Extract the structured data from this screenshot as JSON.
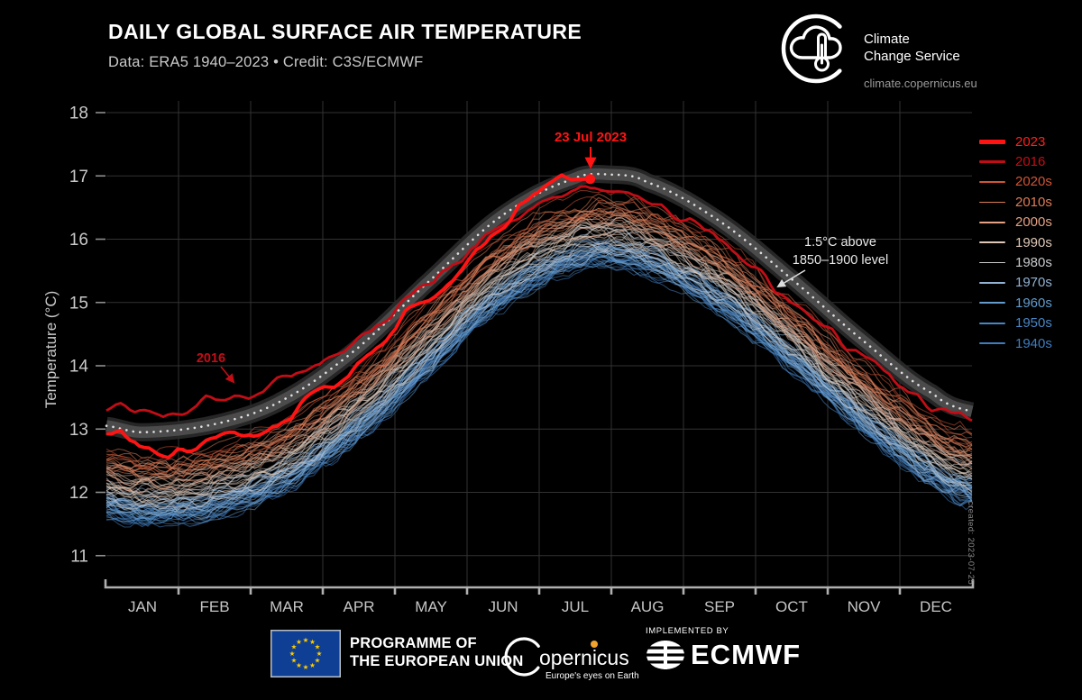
{
  "header": {
    "title": "DAILY GLOBAL SURFACE AIR TEMPERATURE",
    "subtitle": "Data: ERA5 1940–2023 • Credit: C3S/ECMWF"
  },
  "branding": {
    "name_line1": "Climate",
    "name_line2": "Change Service",
    "url": "climate.copernicus.eu"
  },
  "created_note": "created: 2023-07-25",
  "footer": {
    "eu_programme_line1": "PROGRAMME OF",
    "eu_programme_line2": "THE EUROPEAN UNION",
    "copernicus_name": "opernicus",
    "copernicus_tagline": "Europe's eyes on Earth",
    "implemented_by": "IMPLEMENTED BY",
    "ecmwf": "ECMWF"
  },
  "chart_data": {
    "type": "line",
    "title": "DAILY GLOBAL SURFACE AIR TEMPERATURE",
    "xlabel": "",
    "ylabel": "Temperature (°C)",
    "ylim": [
      10.5,
      18.2
    ],
    "y_ticks": [
      11,
      12,
      13,
      14,
      15,
      16,
      17,
      18
    ],
    "months": [
      "JAN",
      "FEB",
      "MAR",
      "APR",
      "MAY",
      "JUN",
      "JUL",
      "AUG",
      "SEP",
      "OCT",
      "NOV",
      "DEC"
    ],
    "grid": true,
    "legend_position": "right",
    "colors": {
      "background": "#000000",
      "grid": "#323232",
      "axis": "#b0b0b0",
      "tick_label": "#c9c9c9",
      "band": "#4d4d4d",
      "band_halo": "#2a2a2a",
      "dotted": "#e0e0e0",
      "annotation_light": "#e8e8e8"
    },
    "threshold": {
      "label_line1": "1.5°C above",
      "label_line2": "1850–1900 level",
      "points": [
        [
          0,
          13.05
        ],
        [
          15,
          12.95
        ],
        [
          46,
          13.08
        ],
        [
          74,
          13.45
        ],
        [
          105,
          14.25
        ],
        [
          135,
          15.3
        ],
        [
          166,
          16.35
        ],
        [
          197,
          16.95
        ],
        [
          213,
          17.02
        ],
        [
          228,
          16.9
        ],
        [
          258,
          16.3
        ],
        [
          288,
          15.4
        ],
        [
          319,
          14.4
        ],
        [
          349,
          13.55
        ],
        [
          365,
          13.28
        ]
      ]
    },
    "decades": [
      {
        "label": "1940s",
        "color": "#3f7cbf",
        "years": [
          1940,
          1949
        ],
        "offset": -1.28
      },
      {
        "label": "1950s",
        "color": "#4885c4",
        "years": [
          1950,
          1959
        ],
        "offset": -1.26
      },
      {
        "label": "1960s",
        "color": "#639bcc",
        "years": [
          1960,
          1969
        ],
        "offset": -1.27
      },
      {
        "label": "1970s",
        "color": "#92b2d4",
        "years": [
          1970,
          1979
        ],
        "offset": -1.18
      },
      {
        "label": "1980s",
        "color": "#c8cacd",
        "years": [
          1980,
          1989
        ],
        "offset": -1.02
      },
      {
        "label": "1990s",
        "color": "#dfc8b8",
        "years": [
          1990,
          1999
        ],
        "offset": -0.88
      },
      {
        "label": "2000s",
        "color": "#e4a183",
        "years": [
          2000,
          2009
        ],
        "offset": -0.72
      },
      {
        "label": "2010s",
        "color": "#de7c55",
        "years": [
          2010,
          2019
        ],
        "offset": -0.53
      },
      {
        "label": "2020s",
        "color": "#d25435",
        "years": [
          2020,
          2022
        ],
        "offset": -0.38
      }
    ],
    "highlights": [
      {
        "label": "2023",
        "color": "#ff1414",
        "width": 3.8,
        "start_day": 0,
        "end_day": 204,
        "seed": 20230,
        "offsets": [
          [
            0,
            -0.05
          ],
          [
            12,
            -0.18
          ],
          [
            25,
            -0.42
          ],
          [
            38,
            -0.3
          ],
          [
            50,
            -0.12
          ],
          [
            62,
            -0.3
          ],
          [
            75,
            -0.38
          ],
          [
            88,
            -0.22
          ],
          [
            100,
            -0.3
          ],
          [
            115,
            -0.28
          ],
          [
            130,
            -0.18
          ],
          [
            145,
            -0.28
          ],
          [
            160,
            -0.18
          ],
          [
            172,
            -0.08
          ],
          [
            182,
            0.02
          ],
          [
            190,
            0.06
          ],
          [
            197,
            0.0
          ],
          [
            204,
            -0.03
          ]
        ],
        "marker": {
          "day": 204,
          "value": 16.95,
          "label": "23 Jul 2023"
        }
      },
      {
        "label": "2016",
        "color": "#c30d16",
        "width": 2.8,
        "start_day": 0,
        "end_day": 365,
        "seed": 20160,
        "offsets": [
          [
            0,
            0.28
          ],
          [
            15,
            0.38
          ],
          [
            30,
            0.28
          ],
          [
            45,
            0.38
          ],
          [
            60,
            0.3
          ],
          [
            75,
            0.33
          ],
          [
            90,
            0.2
          ],
          [
            105,
            0.12
          ],
          [
            120,
            0.06
          ],
          [
            135,
            -0.02
          ],
          [
            150,
            -0.1
          ],
          [
            165,
            -0.16
          ],
          [
            180,
            -0.2
          ],
          [
            195,
            -0.24
          ],
          [
            210,
            -0.3
          ],
          [
            225,
            -0.34
          ],
          [
            240,
            -0.38
          ],
          [
            255,
            -0.3
          ],
          [
            270,
            -0.36
          ],
          [
            285,
            -0.34
          ],
          [
            300,
            -0.3
          ],
          [
            315,
            -0.26
          ],
          [
            330,
            -0.22
          ],
          [
            345,
            -0.18
          ],
          [
            365,
            -0.12
          ]
        ]
      }
    ],
    "noise": {
      "amp": 0.13,
      "fine_amp": 0.05,
      "knot_days": 8,
      "jitter": 0.16
    },
    "legend_order": [
      "2023",
      "2016",
      "2020s",
      "2010s",
      "2000s",
      "1990s",
      "1980s",
      "1970s",
      "1960s",
      "1950s",
      "1940s"
    ]
  }
}
